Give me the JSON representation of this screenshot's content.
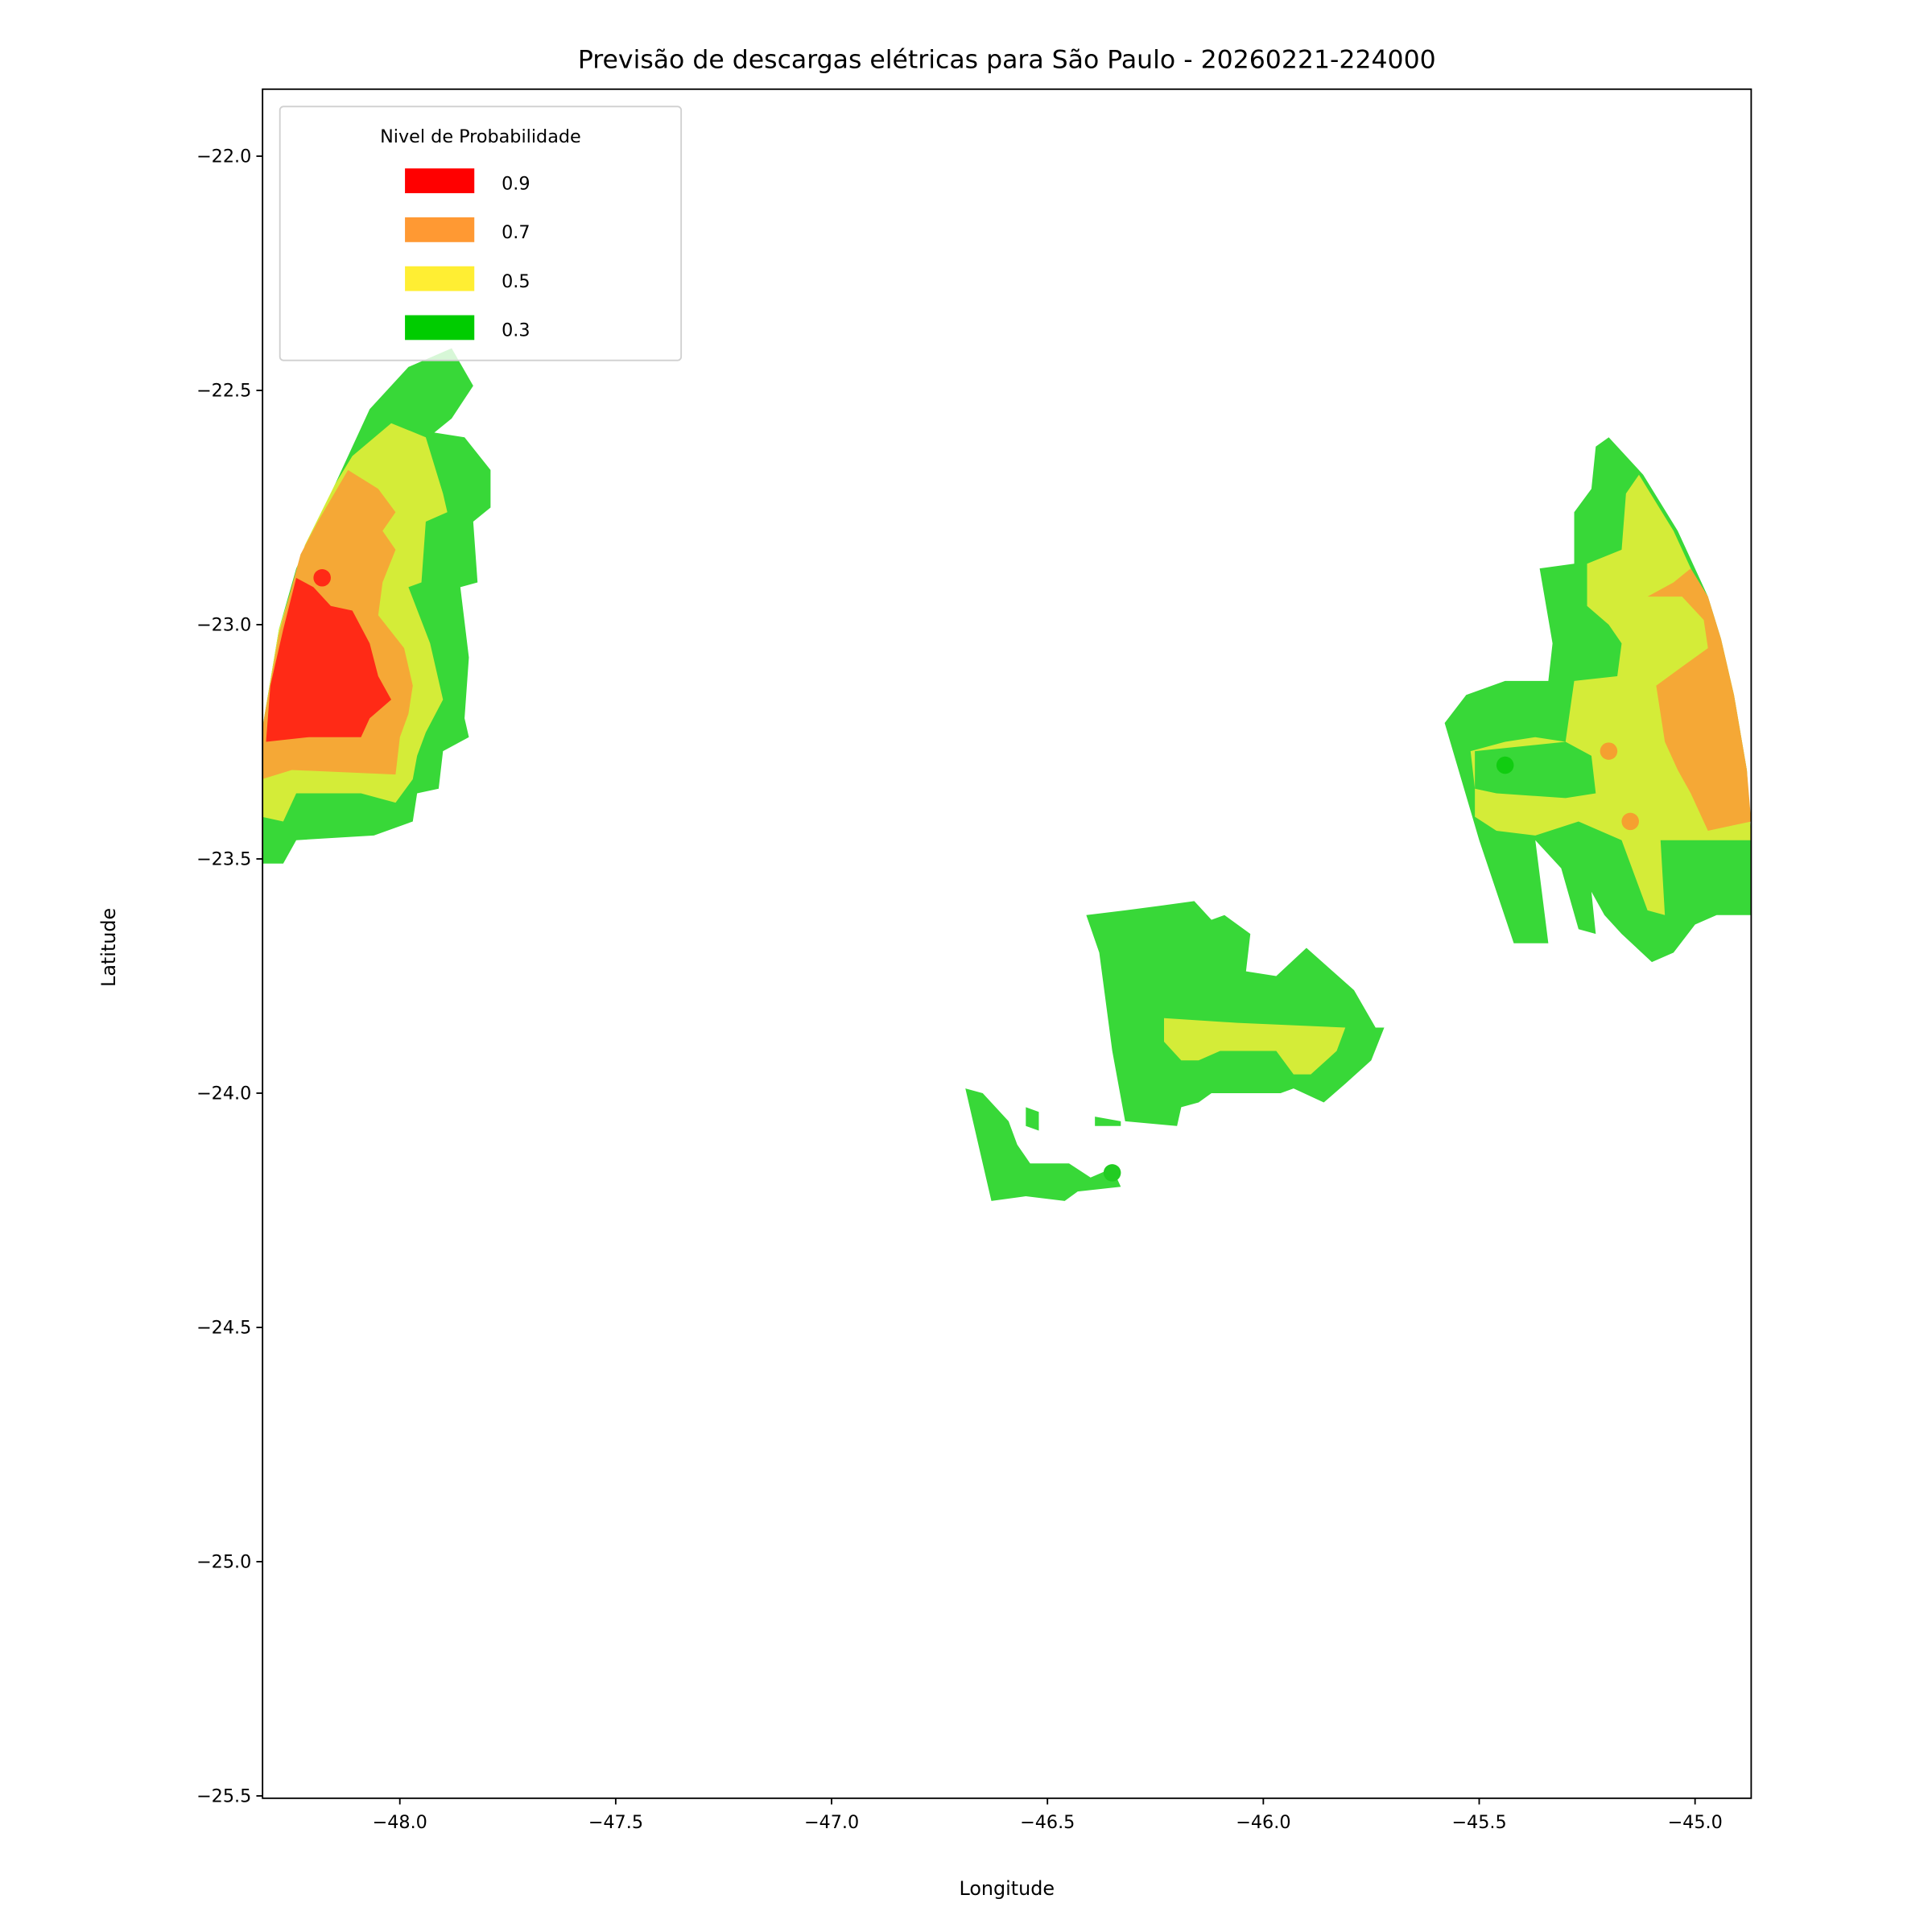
{
  "chart_data": {
    "type": "contour",
    "title": "Previsão de descargas elétricas para São Paulo - 20260221-224000",
    "xlabel": "Longitude",
    "ylabel": "Latitude",
    "xlim": [
      -48.318,
      -44.87
    ],
    "ylim": [
      -25.505,
      -21.857
    ],
    "xticks": [
      -48.0,
      -47.5,
      -47.0,
      -46.5,
      -46.0,
      -45.5,
      -45.0
    ],
    "xtick_labels": [
      "−48.0",
      "−47.5",
      "−47.0",
      "−46.5",
      "−46.0",
      "−45.5",
      "−45.0"
    ],
    "yticks": [
      -22.0,
      -22.5,
      -23.0,
      -23.5,
      -24.0,
      -24.5,
      -25.0,
      -25.5
    ],
    "ytick_labels": [
      "−22.0",
      "−22.5",
      "−23.0",
      "−23.5",
      "−24.0",
      "−24.5",
      "−25.0",
      "−25.5"
    ],
    "grid": false,
    "legend": {
      "title": "Nivel de Probabilidade",
      "placement": "upper-left",
      "entries": [
        {
          "label": "0.9",
          "color": "#ff0000"
        },
        {
          "label": "0.7",
          "color": "#ff9933"
        },
        {
          "label": "0.5",
          "color": "#ffee33"
        },
        {
          "label": "0.3",
          "color": "#00cc00"
        }
      ]
    },
    "fill_colors": {
      "0.3": "#38d838",
      "0.5": "#d4ec38",
      "0.7": "#f5a836",
      "0.9": "#ff2a16"
    },
    "regions": [
      {
        "level": "0.3",
        "points": [
          [
            -47.88,
            -22.41
          ],
          [
            -47.83,
            -22.49
          ],
          [
            -47.88,
            -22.56
          ],
          [
            -47.92,
            -22.59
          ],
          [
            -47.85,
            -22.6
          ],
          [
            -47.79,
            -22.67
          ],
          [
            -47.79,
            -22.75
          ],
          [
            -47.83,
            -22.78
          ],
          [
            -47.82,
            -22.91
          ],
          [
            -47.86,
            -22.92
          ],
          [
            -47.84,
            -23.07
          ],
          [
            -47.85,
            -23.2
          ],
          [
            -47.84,
            -23.24
          ],
          [
            -47.9,
            -23.27
          ],
          [
            -47.91,
            -23.35
          ],
          [
            -47.96,
            -23.36
          ],
          [
            -47.97,
            -23.42
          ],
          [
            -48.06,
            -23.45
          ],
          [
            -48.24,
            -23.46
          ],
          [
            -48.27,
            -23.51
          ],
          [
            -48.32,
            -23.51
          ],
          [
            -48.32,
            -23.23
          ],
          [
            -48.28,
            -23.01
          ],
          [
            -48.24,
            -22.88
          ],
          [
            -48.15,
            -22.7
          ],
          [
            -48.07,
            -22.54
          ],
          [
            -47.98,
            -22.45
          ]
        ]
      },
      {
        "level": "0.5",
        "points": [
          [
            -48.11,
            -22.64
          ],
          [
            -48.02,
            -22.57
          ],
          [
            -47.94,
            -22.6
          ],
          [
            -47.9,
            -22.72
          ],
          [
            -47.89,
            -22.76
          ],
          [
            -47.94,
            -22.78
          ],
          [
            -47.95,
            -22.91
          ],
          [
            -47.98,
            -22.92
          ],
          [
            -47.93,
            -23.04
          ],
          [
            -47.9,
            -23.16
          ],
          [
            -47.94,
            -23.23
          ],
          [
            -47.96,
            -23.28
          ],
          [
            -47.97,
            -23.33
          ],
          [
            -48.01,
            -23.38
          ],
          [
            -48.09,
            -23.36
          ],
          [
            -48.24,
            -23.36
          ],
          [
            -48.27,
            -23.42
          ],
          [
            -48.32,
            -23.41
          ],
          [
            -48.32,
            -23.23
          ],
          [
            -48.28,
            -23.01
          ],
          [
            -48.22,
            -22.83
          ],
          [
            -48.15,
            -22.7
          ]
        ]
      },
      {
        "level": "0.7",
        "points": [
          [
            -48.19,
            -22.78
          ],
          [
            -48.12,
            -22.67
          ],
          [
            -48.05,
            -22.71
          ],
          [
            -48.01,
            -22.76
          ],
          [
            -48.04,
            -22.8
          ],
          [
            -48.01,
            -22.84
          ],
          [
            -48.04,
            -22.91
          ],
          [
            -48.05,
            -22.98
          ],
          [
            -47.99,
            -23.05
          ],
          [
            -47.97,
            -23.13
          ],
          [
            -47.98,
            -23.19
          ],
          [
            -48.0,
            -23.24
          ],
          [
            -48.01,
            -23.32
          ],
          [
            -48.25,
            -23.31
          ],
          [
            -48.32,
            -23.33
          ],
          [
            -48.32,
            -23.23
          ],
          [
            -48.28,
            -23.02
          ],
          [
            -48.23,
            -22.85
          ]
        ]
      },
      {
        "level": "0.9",
        "points": [
          [
            -48.24,
            -22.9
          ],
          [
            -48.2,
            -22.92
          ],
          [
            -48.16,
            -22.96
          ],
          [
            -48.11,
            -22.97
          ],
          [
            -48.07,
            -23.04
          ],
          [
            -48.05,
            -23.11
          ],
          [
            -48.02,
            -23.16
          ],
          [
            -48.07,
            -23.2
          ],
          [
            -48.09,
            -23.24
          ],
          [
            -48.21,
            -23.24
          ],
          [
            -48.31,
            -23.25
          ],
          [
            -48.3,
            -23.13
          ],
          [
            -48.27,
            -23.01
          ]
        ]
      },
      {
        "level": "0.3",
        "points": [
          [
            -46.41,
            -23.62
          ],
          [
            -46.32,
            -23.61
          ],
          [
            -46.24,
            -23.6
          ],
          [
            -46.16,
            -23.59
          ],
          [
            -46.12,
            -23.63
          ],
          [
            -46.09,
            -23.62
          ],
          [
            -46.03,
            -23.66
          ],
          [
            -46.04,
            -23.74
          ],
          [
            -45.97,
            -23.75
          ],
          [
            -45.9,
            -23.69
          ],
          [
            -45.79,
            -23.78
          ],
          [
            -45.74,
            -23.86
          ],
          [
            -45.72,
            -23.86
          ],
          [
            -45.75,
            -23.93
          ],
          [
            -45.81,
            -23.98
          ],
          [
            -45.86,
            -24.02
          ],
          [
            -45.93,
            -23.99
          ],
          [
            -45.96,
            -24.0
          ],
          [
            -46.12,
            -24.0
          ],
          [
            -46.15,
            -24.02
          ],
          [
            -46.19,
            -24.03
          ],
          [
            -46.2,
            -24.07
          ],
          [
            -46.32,
            -24.06
          ],
          [
            -46.35,
            -23.91
          ],
          [
            -46.38,
            -23.7
          ]
        ]
      },
      {
        "level": "0.5",
        "points": [
          [
            -46.23,
            -23.84
          ],
          [
            -46.06,
            -23.85
          ],
          [
            -45.81,
            -23.86
          ],
          [
            -45.83,
            -23.91
          ],
          [
            -45.89,
            -23.96
          ],
          [
            -45.93,
            -23.96
          ],
          [
            -45.97,
            -23.91
          ],
          [
            -46.1,
            -23.91
          ],
          [
            -46.15,
            -23.93
          ],
          [
            -46.19,
            -23.93
          ],
          [
            -46.23,
            -23.89
          ]
        ]
      },
      {
        "level": "0.3",
        "points": [
          [
            -46.69,
            -23.99
          ],
          [
            -46.65,
            -24.0
          ],
          [
            -46.59,
            -24.06
          ],
          [
            -46.57,
            -24.11
          ],
          [
            -46.54,
            -24.15
          ],
          [
            -46.45,
            -24.15
          ],
          [
            -46.4,
            -24.18
          ],
          [
            -46.35,
            -24.16
          ],
          [
            -46.33,
            -24.2
          ],
          [
            -46.43,
            -24.21
          ],
          [
            -46.46,
            -24.23
          ],
          [
            -46.55,
            -24.22
          ],
          [
            -46.63,
            -24.23
          ]
        ]
      },
      {
        "level": "0.3",
        "points": [
          [
            -46.55,
            -24.03
          ],
          [
            -46.52,
            -24.04
          ],
          [
            -46.52,
            -24.08
          ],
          [
            -46.55,
            -24.07
          ]
        ]
      },
      {
        "level": "0.3",
        "points": [
          [
            -46.39,
            -24.05
          ],
          [
            -46.33,
            -24.06
          ],
          [
            -46.33,
            -24.07
          ],
          [
            -46.39,
            -24.07
          ]
        ]
      },
      {
        "level": "0.3",
        "points": [
          [
            -45.2,
            -22.6
          ],
          [
            -45.12,
            -22.68
          ],
          [
            -45.04,
            -22.8
          ],
          [
            -44.97,
            -22.94
          ],
          [
            -44.94,
            -23.03
          ],
          [
            -44.91,
            -23.15
          ],
          [
            -44.88,
            -23.31
          ],
          [
            -44.87,
            -23.46
          ],
          [
            -44.87,
            -23.62
          ],
          [
            -44.95,
            -23.62
          ],
          [
            -45.0,
            -23.64
          ],
          [
            -45.05,
            -23.7
          ],
          [
            -45.1,
            -23.72
          ],
          [
            -45.17,
            -23.66
          ],
          [
            -45.21,
            -23.62
          ],
          [
            -45.24,
            -23.57
          ],
          [
            -45.23,
            -23.66
          ],
          [
            -45.27,
            -23.65
          ],
          [
            -45.31,
            -23.52
          ],
          [
            -45.37,
            -23.46
          ],
          [
            -45.34,
            -23.68
          ],
          [
            -45.42,
            -23.68
          ],
          [
            -45.5,
            -23.46
          ],
          [
            -45.58,
            -23.21
          ],
          [
            -45.53,
            -23.15
          ],
          [
            -45.44,
            -23.12
          ],
          [
            -45.34,
            -23.12
          ],
          [
            -45.33,
            -23.04
          ],
          [
            -45.36,
            -22.88
          ],
          [
            -45.28,
            -22.87
          ],
          [
            -45.28,
            -22.76
          ],
          [
            -45.24,
            -22.71
          ],
          [
            -45.23,
            -22.62
          ]
        ]
      },
      {
        "level": "0.5",
        "points": [
          [
            -45.13,
            -22.68
          ],
          [
            -45.05,
            -22.8
          ],
          [
            -44.98,
            -22.94
          ],
          [
            -44.94,
            -23.03
          ],
          [
            -44.91,
            -23.15
          ],
          [
            -44.88,
            -23.31
          ],
          [
            -44.87,
            -23.46
          ],
          [
            -44.97,
            -23.46
          ],
          [
            -45.08,
            -23.46
          ],
          [
            -45.07,
            -23.62
          ],
          [
            -45.11,
            -23.61
          ],
          [
            -45.17,
            -23.46
          ],
          [
            -45.27,
            -23.42
          ],
          [
            -45.37,
            -23.45
          ],
          [
            -45.46,
            -23.44
          ],
          [
            -45.51,
            -23.41
          ],
          [
            -45.51,
            -23.35
          ],
          [
            -45.52,
            -23.27
          ],
          [
            -45.44,
            -23.25
          ],
          [
            -45.37,
            -23.24
          ],
          [
            -45.3,
            -23.25
          ],
          [
            -45.28,
            -23.12
          ],
          [
            -45.18,
            -23.11
          ],
          [
            -45.17,
            -23.04
          ],
          [
            -45.2,
            -23.0
          ],
          [
            -45.25,
            -22.96
          ],
          [
            -45.25,
            -22.87
          ],
          [
            -45.17,
            -22.84
          ],
          [
            -45.16,
            -22.72
          ]
        ]
      },
      {
        "level": "0.3",
        "points": [
          [
            -45.51,
            -23.27
          ],
          [
            -45.3,
            -23.25
          ],
          [
            -45.24,
            -23.28
          ],
          [
            -45.23,
            -23.36
          ],
          [
            -45.3,
            -23.37
          ],
          [
            -45.46,
            -23.36
          ],
          [
            -45.51,
            -23.35
          ]
        ]
      },
      {
        "level": "0.7",
        "points": [
          [
            -45.01,
            -22.88
          ],
          [
            -44.97,
            -22.94
          ],
          [
            -44.94,
            -23.03
          ],
          [
            -44.91,
            -23.15
          ],
          [
            -44.88,
            -23.31
          ],
          [
            -44.87,
            -23.42
          ],
          [
            -44.97,
            -23.44
          ],
          [
            -45.01,
            -23.36
          ],
          [
            -45.04,
            -23.31
          ],
          [
            -45.07,
            -23.25
          ],
          [
            -45.09,
            -23.13
          ],
          [
            -45.03,
            -23.09
          ],
          [
            -44.97,
            -23.05
          ],
          [
            -44.98,
            -22.99
          ],
          [
            -45.03,
            -22.94
          ],
          [
            -45.11,
            -22.94
          ],
          [
            -45.05,
            -22.91
          ]
        ]
      }
    ],
    "points": [
      {
        "lon": -48.18,
        "lat": -22.9,
        "level": "0.9",
        "color": "#ff2a16"
      },
      {
        "lon": -46.35,
        "lat": -24.17,
        "level": "0.3",
        "color": "#22cc22"
      },
      {
        "lon": -45.44,
        "lat": -23.3,
        "level": "0.3",
        "color": "#11cc11"
      },
      {
        "lon": -45.2,
        "lat": -23.27,
        "level": "0.7",
        "color": "#f5a030"
      },
      {
        "lon": -45.15,
        "lat": -23.42,
        "level": "0.7",
        "color": "#f5a030"
      }
    ]
  }
}
